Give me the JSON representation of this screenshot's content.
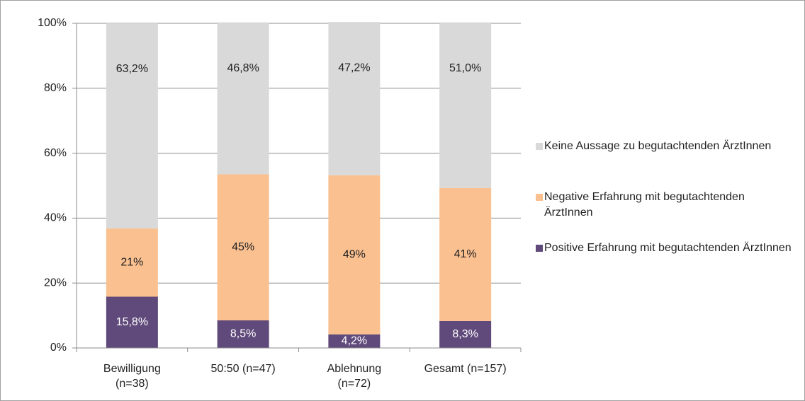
{
  "chart_data": {
    "type": "stacked_bar",
    "categories": [
      "Bewilligung (n=38)",
      "50:50 (n=47)",
      "Ablehnung (n=72)",
      "Gesamt (n=157)"
    ],
    "series": [
      {
        "name": "Positive Erfahrung mit begutachtenden ÄrztInnen",
        "color": "#604a7b",
        "values": [
          15.8,
          8.5,
          4.2,
          8.3
        ],
        "value_labels": [
          "15,8%",
          "8,5%",
          "4,2%",
          "8,3%"
        ]
      },
      {
        "name": "Negative Erfahrung mit begutachtenden ÄrztInnen",
        "color": "#fac090",
        "values": [
          21,
          45,
          49,
          41
        ],
        "value_labels": [
          "21%",
          "45%",
          "49%",
          "41%"
        ]
      },
      {
        "name": "Keine Aussage zu  begutachtenden ÄrztInnen",
        "color": "#d9d9d9",
        "values": [
          63.2,
          46.8,
          47.2,
          51.0
        ],
        "value_labels": [
          "63,2%",
          "46,8%",
          "47,2%",
          "51,0%"
        ]
      }
    ],
    "ylim": [
      0,
      100
    ],
    "yticks": [
      {
        "value": 0,
        "label": "0%"
      },
      {
        "value": 20,
        "label": "20%"
      },
      {
        "value": 40,
        "label": "40%"
      },
      {
        "value": 60,
        "label": "60%"
      },
      {
        "value": 80,
        "label": "80%"
      },
      {
        "value": 100,
        "label": "100%"
      }
    ],
    "grid": true,
    "legend": "right"
  }
}
